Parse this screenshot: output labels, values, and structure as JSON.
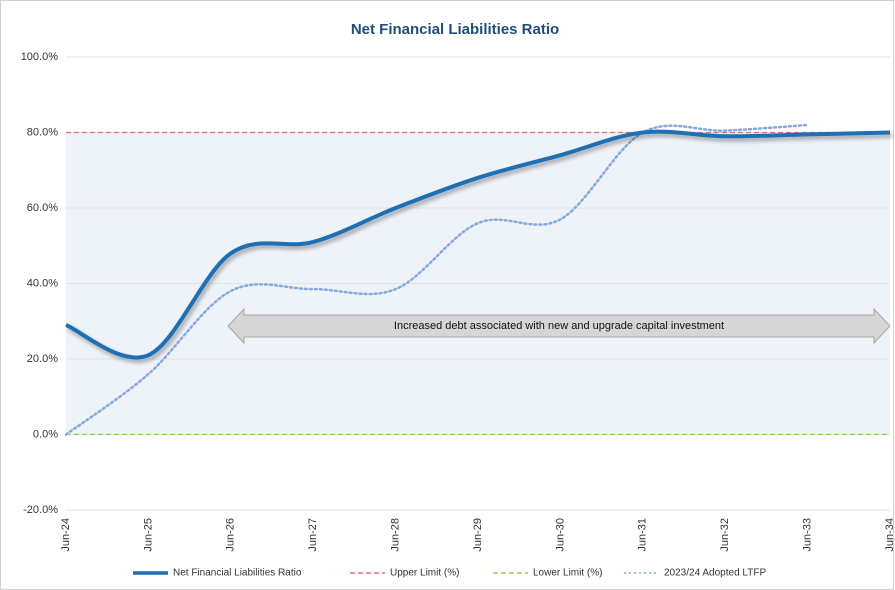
{
  "chart_data": {
    "type": "line",
    "title": "Net Financial Liabilities Ratio",
    "categories": [
      "Jun-24",
      "Jun-25",
      "Jun-26",
      "Jun-27",
      "Jun-28",
      "Jun-29",
      "Jun-30",
      "Jun-31",
      "Jun-32",
      "Jun-33",
      "Jun-34"
    ],
    "series": [
      {
        "name": "Net Financial Liabilities Ratio",
        "color": "#1f6fb5",
        "style": "solid",
        "values": [
          29,
          21,
          48,
          51,
          60,
          68,
          74,
          80,
          79,
          79.5,
          80
        ]
      },
      {
        "name": "Upper Limit (%)",
        "color": "#d9727a",
        "style": "dashed",
        "values": [
          80,
          80,
          80,
          80,
          80,
          80,
          80,
          80,
          80,
          80,
          80
        ]
      },
      {
        "name": "Lower Limit (%)",
        "color": "#92d050",
        "style": "dashed",
        "values": [
          0,
          0,
          0,
          0,
          0,
          0,
          0,
          0,
          0,
          0,
          0
        ]
      },
      {
        "name": "2023/24 Adopted LTFP",
        "color": "#86a9dc",
        "style": "dotted",
        "values": [
          0,
          16,
          38,
          38.5,
          38.5,
          56,
          57,
          80,
          80.5,
          82,
          null
        ]
      }
    ],
    "ylim": [
      -20,
      100
    ],
    "yticks": [
      {
        "value": -20,
        "label": "-20.0%"
      },
      {
        "value": 0,
        "label": "0.0%"
      },
      {
        "value": 20,
        "label": "20.0%"
      },
      {
        "value": 40,
        "label": "40.0%"
      },
      {
        "value": 60,
        "label": "60.0%"
      },
      {
        "value": 80,
        "label": "80.0%"
      },
      {
        "value": 100,
        "label": "100.0%"
      }
    ],
    "grid": true,
    "legend": "bottom",
    "annotation": "Increased debt associated with new and upgrade capital investment"
  }
}
